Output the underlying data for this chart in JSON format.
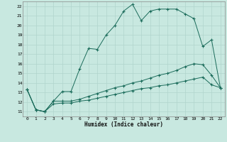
{
  "xlabel": "Humidex (Indice chaleur)",
  "x_ticks": [
    0,
    1,
    2,
    3,
    4,
    5,
    6,
    7,
    8,
    9,
    10,
    11,
    12,
    13,
    14,
    15,
    16,
    17,
    18,
    19,
    20,
    21,
    22
  ],
  "ylim": [
    10.5,
    22.5
  ],
  "xlim": [
    -0.5,
    22.5
  ],
  "yticks": [
    11,
    12,
    13,
    14,
    15,
    16,
    17,
    18,
    19,
    20,
    21,
    22
  ],
  "background_color": "#c8e8e0",
  "grid_color": "#b0d4cc",
  "line_color": "#1a6b5a",
  "line1_y": [
    13.3,
    11.2,
    11.0,
    12.1,
    13.1,
    13.1,
    15.5,
    17.6,
    17.5,
    19.0,
    20.0,
    21.5,
    22.2,
    20.5,
    21.5,
    21.7,
    21.7,
    21.7,
    21.2,
    20.7,
    17.8,
    18.5,
    13.5
  ],
  "line2_y": [
    13.3,
    11.2,
    11.0,
    12.1,
    12.1,
    12.1,
    12.3,
    12.6,
    12.9,
    13.2,
    13.5,
    13.7,
    14.0,
    14.2,
    14.5,
    14.8,
    15.0,
    15.3,
    15.7,
    16.0,
    15.9,
    14.8,
    13.5
  ],
  "line3_y": [
    13.3,
    11.2,
    11.0,
    11.8,
    11.9,
    11.9,
    12.1,
    12.2,
    12.4,
    12.6,
    12.8,
    13.0,
    13.2,
    13.4,
    13.5,
    13.7,
    13.8,
    14.0,
    14.2,
    14.4,
    14.6,
    13.8,
    13.5
  ]
}
